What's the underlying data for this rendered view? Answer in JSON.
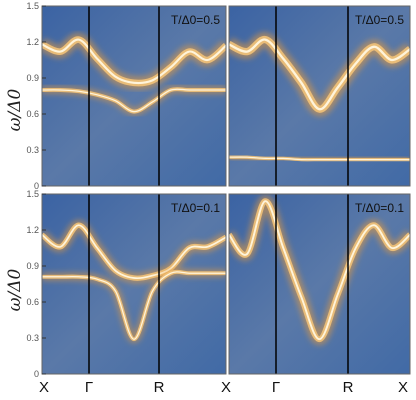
{
  "figure": {
    "ylabel": "ω/Δ0",
    "xtick_labels": [
      "X",
      "Γ",
      "R",
      "X"
    ]
  },
  "chart_data": [
    {
      "type": "heatmap",
      "panel": "top-left",
      "annotation": "T/Δ0=0.5",
      "xlabel": "",
      "ylabel": "ω/Δ0",
      "x_path": [
        "X",
        "Γ",
        "R",
        "X"
      ],
      "ylim": [
        0,
        1.5
      ],
      "yticks": [
        "0",
        "0.3",
        "0.6",
        "0.9",
        "1.2",
        "1.5"
      ],
      "bands": [
        {
          "k": [
            0,
            0.25,
            0.5,
            0.75,
            1
          ],
          "omega": [
            1.18,
            1.12,
            1.22,
            1.06,
            0.91,
            0.86,
            0.88,
            0.99,
            1.12,
            1.05,
            1.17
          ],
          "width": 0.05
        },
        {
          "k": [
            0,
            1
          ],
          "omega": [
            0.8,
            0.8,
            0.79,
            0.76,
            0.71,
            0.62,
            0.7,
            0.8,
            0.8,
            0.8,
            0.8
          ],
          "width": 0.03
        }
      ]
    },
    {
      "type": "heatmap",
      "panel": "top-right",
      "annotation": "T/Δ0=0.5",
      "xlabel": "",
      "ylabel": "",
      "x_path": [
        "X",
        "Γ",
        "R",
        "X"
      ],
      "ylim": [
        0,
        1.5
      ],
      "bands": [
        {
          "omega": [
            1.18,
            1.12,
            1.22,
            1.06,
            0.86,
            0.64,
            0.82,
            1.02,
            1.16,
            1.05,
            1.14
          ],
          "width": 0.055
        },
        {
          "omega": [
            0.24,
            0.24,
            0.23,
            0.23,
            0.22,
            0.22,
            0.22,
            0.22,
            0.22,
            0.22,
            0.22
          ],
          "width": 0.025
        }
      ]
    },
    {
      "type": "heatmap",
      "panel": "bottom-left",
      "annotation": "T/Δ0=0.1",
      "xlabel": "",
      "ylabel": "ω/Δ0",
      "x_path": [
        "X",
        "Γ",
        "R",
        "X"
      ],
      "ylim": [
        0,
        1.5
      ],
      "yticks": [
        "0",
        "0.3",
        "0.6",
        "0.9",
        "1.2",
        "1.5"
      ],
      "bands": [
        {
          "omega": [
            1.16,
            1.06,
            1.24,
            1.05,
            0.86,
            0.8,
            0.82,
            0.88,
            1.05,
            1.06,
            1.14
          ],
          "width": 0.04
        },
        {
          "omega": [
            0.81,
            0.81,
            0.81,
            0.79,
            0.69,
            0.29,
            0.69,
            0.84,
            0.84,
            0.84,
            0.84
          ],
          "width": 0.03
        }
      ]
    },
    {
      "type": "heatmap",
      "panel": "bottom-right",
      "annotation": "T/Δ0=0.1",
      "xlabel": "",
      "ylabel": "",
      "x_path": [
        "X",
        "Γ",
        "R",
        "X"
      ],
      "ylim": [
        0,
        1.5
      ],
      "bands": [
        {
          "omega": [
            1.16,
            1.0,
            1.44,
            1.05,
            0.64,
            0.29,
            0.66,
            1.05,
            1.24,
            1.05,
            1.16
          ],
          "width": 0.045
        }
      ]
    }
  ]
}
